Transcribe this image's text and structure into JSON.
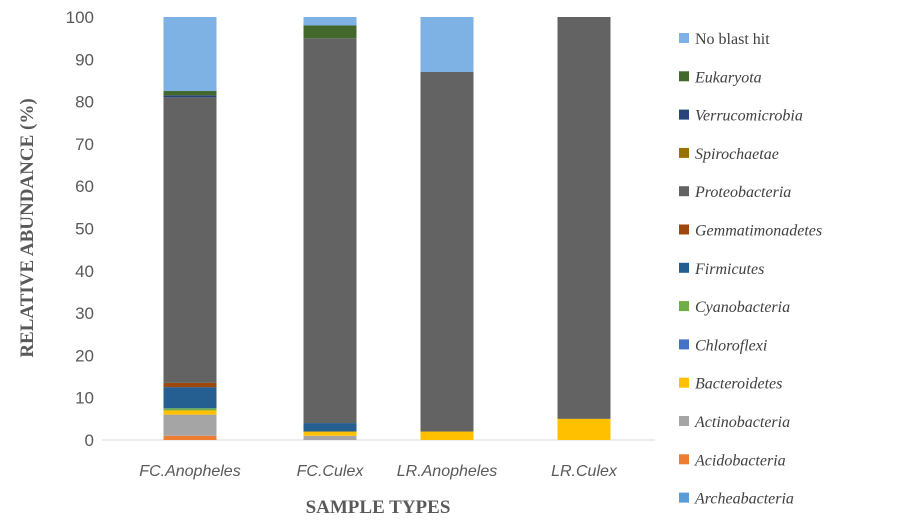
{
  "chart_data": {
    "type": "bar",
    "stacked": true,
    "xlabel": "SAMPLE TYPES",
    "ylabel": "RELATIVE ABUNDANCE (%)",
    "ylim": [
      0,
      100
    ],
    "yticks": [
      "0",
      "10",
      "20",
      "30",
      "40",
      "50",
      "60",
      "70",
      "80",
      "90",
      "100"
    ],
    "categories": [
      "FC.Anopheles",
      "FC.Culex",
      "LR.Anopheles",
      "LR.Culex"
    ],
    "legend_position": "right",
    "grid": false,
    "series": [
      {
        "name": "Archeabacteria",
        "italic": true,
        "color": "#5b9bd5",
        "values": [
          0,
          0,
          0,
          0
        ]
      },
      {
        "name": "Acidobacteria",
        "italic": true,
        "color": "#ed7d31",
        "values": [
          1,
          0,
          0,
          0
        ]
      },
      {
        "name": "Actinobacteria",
        "italic": true,
        "color": "#a5a5a5",
        "values": [
          5,
          1,
          0,
          0
        ]
      },
      {
        "name": "Bacteroidetes",
        "italic": true,
        "color": "#ffc000",
        "values": [
          1,
          1,
          2,
          5
        ]
      },
      {
        "name": "Chloroflexi",
        "italic": true,
        "color": "#4472c4",
        "values": [
          0,
          0,
          0,
          0
        ]
      },
      {
        "name": "Cyanobacteria",
        "italic": true,
        "color": "#70ad47",
        "values": [
          0.5,
          0,
          0,
          0
        ]
      },
      {
        "name": "Firmicutes",
        "italic": true,
        "color": "#255e91",
        "values": [
          5,
          2,
          0,
          0
        ]
      },
      {
        "name": "Gemmatimonadetes",
        "italic": true,
        "color": "#9e480e",
        "values": [
          1,
          0,
          0,
          0
        ]
      },
      {
        "name": "Proteobacteria",
        "italic": true,
        "color": "#636363",
        "values": [
          67.5,
          91,
          85,
          95
        ]
      },
      {
        "name": "Spirochaetae",
        "italic": true,
        "color": "#997300",
        "values": [
          0,
          0,
          0,
          0
        ]
      },
      {
        "name": "Verrucomicrobia",
        "italic": true,
        "color": "#264478",
        "values": [
          0.5,
          0,
          0,
          0
        ]
      },
      {
        "name": "Eukaryota",
        "italic": true,
        "color": "#43682b",
        "values": [
          1,
          3,
          0,
          0
        ]
      },
      {
        "name": "No blast hit",
        "italic": false,
        "color": "#7eb2e4",
        "values": [
          17.5,
          2,
          13,
          0
        ]
      }
    ]
  }
}
